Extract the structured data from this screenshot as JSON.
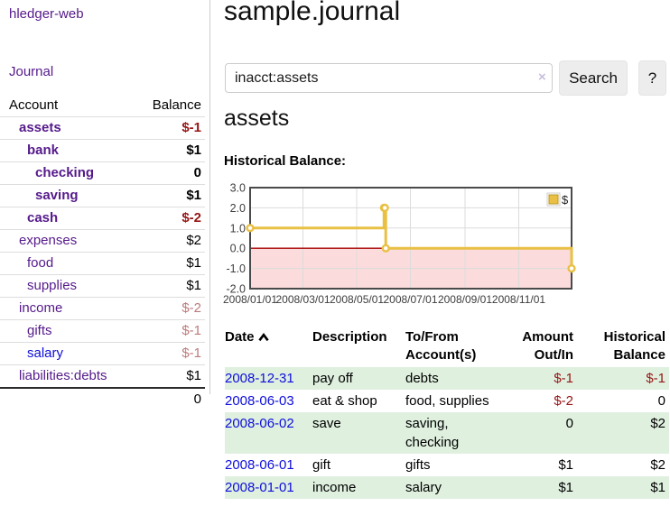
{
  "app": {
    "brand": "hledger-web",
    "nav_journal": "Journal"
  },
  "sidebar": {
    "columns": {
      "account": "Account",
      "balance": "Balance"
    },
    "accounts": [
      {
        "name": "assets",
        "depth": 1,
        "balance": "$-1",
        "bold": true,
        "negative": "strong",
        "link": "purple"
      },
      {
        "name": "bank",
        "depth": 2,
        "balance": "$1",
        "bold": true,
        "negative": "none",
        "link": "purple"
      },
      {
        "name": "checking",
        "depth": 3,
        "balance": "0",
        "bold": true,
        "negative": "none",
        "link": "purple"
      },
      {
        "name": "saving",
        "depth": 3,
        "balance": "$1",
        "bold": true,
        "negative": "none",
        "link": "purple"
      },
      {
        "name": "cash",
        "depth": 2,
        "balance": "$-2",
        "bold": true,
        "negative": "strong",
        "link": "purple"
      },
      {
        "name": "expenses",
        "depth": 1,
        "balance": "$2",
        "bold": false,
        "negative": "none",
        "link": "purple"
      },
      {
        "name": "food",
        "depth": 2,
        "balance": "$1",
        "bold": false,
        "negative": "none",
        "link": "purple"
      },
      {
        "name": "supplies",
        "depth": 2,
        "balance": "$1",
        "bold": false,
        "negative": "none",
        "link": "purple"
      },
      {
        "name": "income",
        "depth": 1,
        "balance": "$-2",
        "bold": false,
        "negative": "soft",
        "link": "purple"
      },
      {
        "name": "gifts",
        "depth": 2,
        "balance": "$-1",
        "bold": false,
        "negative": "soft",
        "link": "purple"
      },
      {
        "name": "salary",
        "depth": 2,
        "balance": "$-1",
        "bold": false,
        "negative": "soft",
        "link": "blue"
      },
      {
        "name": "liabilities:debts",
        "depth": 1,
        "balance": "$1",
        "bold": false,
        "negative": "none",
        "link": "purple"
      }
    ],
    "total": "0"
  },
  "header": {
    "title": "sample.journal"
  },
  "search": {
    "value": "inacct:assets",
    "clear_label": "×",
    "button_label": "Search",
    "help_label": "?"
  },
  "account_page": {
    "heading": "assets",
    "chart_label": "Historical Balance:"
  },
  "chart_data": {
    "type": "line",
    "style": "step-after",
    "title": "Historical Balance",
    "series": [
      {
        "name": "$",
        "color": "#e9c044",
        "points": [
          [
            "2008-01-01",
            1
          ],
          [
            "2008-06-01",
            2
          ],
          [
            "2008-06-02",
            2
          ],
          [
            "2008-06-03",
            0
          ],
          [
            "2008-12-31",
            -1
          ]
        ]
      }
    ],
    "x_range": [
      "2008-01-01",
      "2008-12-31"
    ],
    "x_ticks": [
      "2008/01/01",
      "2008/03/01",
      "2008/05/01",
      "2008/07/01",
      "2008/09/01",
      "2008/11/01"
    ],
    "y_ticks": [
      "3.0",
      "2.0",
      "1.0",
      "0.0",
      "-1.0",
      "-2.0"
    ],
    "ylim": [
      -2,
      3
    ],
    "grid": true,
    "legend_position": "top-right",
    "negative_region_color": "#fbdbdb",
    "zero_line_color": "#a40000",
    "grid_color": "#dcdcdc",
    "border_color": "#4a4a4a"
  },
  "register": {
    "columns": {
      "date": "Date",
      "description": "Description",
      "accounts": "To/From Account(s)",
      "amount": "Amount Out/In",
      "balance": "Historical Balance"
    },
    "sort_column": "date",
    "sort_direction": "ascending",
    "rows": [
      {
        "date": "2008-12-31",
        "description": "pay off",
        "accounts": "debts",
        "amount": "$-1",
        "balance": "$-1",
        "amount_negative": true,
        "balance_negative": true
      },
      {
        "date": "2008-06-03",
        "description": "eat & shop",
        "accounts": "food, supplies",
        "amount": "$-2",
        "balance": "0",
        "amount_negative": true,
        "balance_negative": false
      },
      {
        "date": "2008-06-02",
        "description": "save",
        "accounts": "saving, checking",
        "amount": "0",
        "balance": "$2",
        "amount_negative": false,
        "balance_negative": false
      },
      {
        "date": "2008-06-01",
        "description": "gift",
        "accounts": "gifts",
        "amount": "$1",
        "balance": "$2",
        "amount_negative": false,
        "balance_negative": false
      },
      {
        "date": "2008-01-01",
        "description": "income",
        "accounts": "salary",
        "amount": "$1",
        "balance": "$1",
        "amount_negative": false,
        "balance_negative": false
      }
    ]
  }
}
